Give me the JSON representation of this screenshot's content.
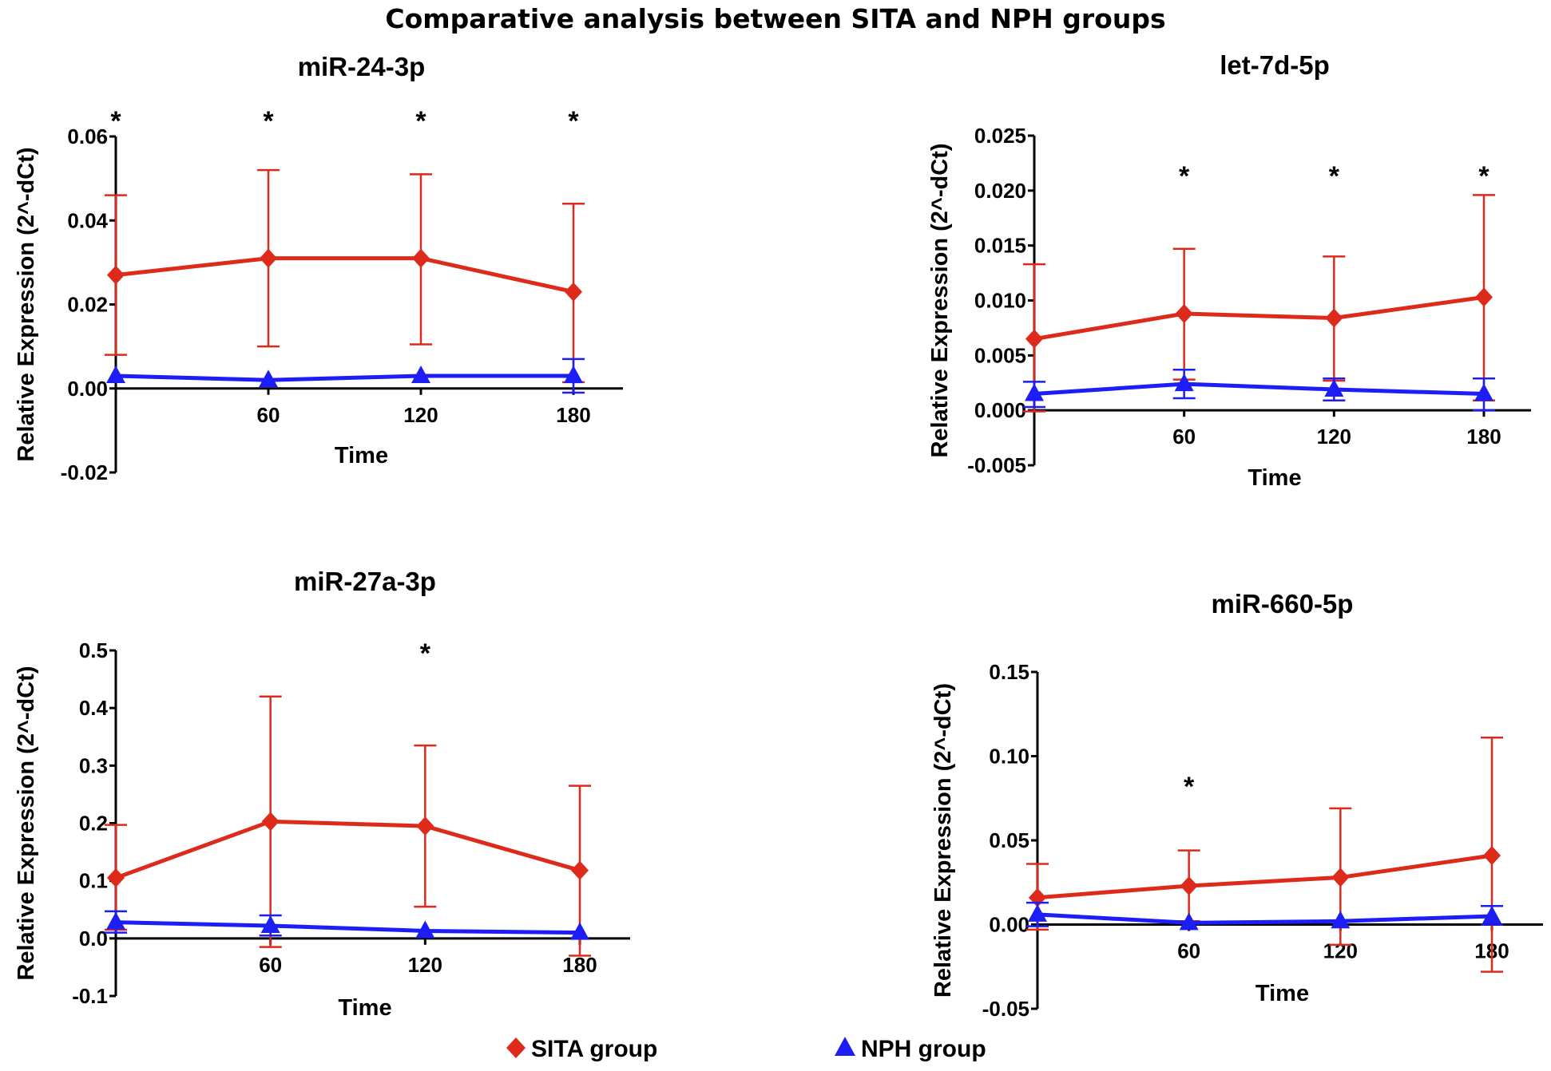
{
  "title": "Comparative analysis between SITA and NPH groups",
  "colors": {
    "sita": "#dd2a1a",
    "nph": "#1d1df5",
    "axis": "#000000"
  },
  "legend": [
    {
      "label": "SITA group",
      "marker": "diamond",
      "color_key": "sita"
    },
    {
      "label": "NPH group",
      "marker": "triangle",
      "color_key": "nph"
    }
  ],
  "chart_data": [
    {
      "type": "line",
      "title": "miR-24-3p",
      "xlabel": "Time",
      "ylabel": "Relative Expression (2^-dCt)",
      "x": [
        0,
        60,
        120,
        180
      ],
      "xticks": [
        "60",
        "120",
        "180"
      ],
      "ylim": [
        -0.02,
        0.06
      ],
      "yticks": [
        "-0.02",
        "0.00",
        "0.02",
        "0.04",
        "0.06"
      ],
      "ytick_values": [
        -0.02,
        0,
        0.02,
        0.04,
        0.06
      ],
      "significant_at": [
        0,
        60,
        120,
        180
      ],
      "series": [
        {
          "name": "SITA group",
          "values": [
            0.027,
            0.031,
            0.031,
            0.023
          ],
          "err_low": [
            0.008,
            0.01,
            0.0105,
            0.0015
          ],
          "err_high": [
            0.046,
            0.052,
            0.051,
            0.044
          ]
        },
        {
          "name": "NPH group",
          "values": [
            0.003,
            0.002,
            0.003,
            0.003
          ],
          "err_low": [
            0.003,
            0.002,
            0.003,
            -0.001
          ],
          "err_high": [
            0.003,
            0.002,
            0.003,
            0.007
          ]
        }
      ]
    },
    {
      "type": "line",
      "title": "let-7d-5p",
      "xlabel": "Time",
      "ylabel": "Relative Expression (2^-dCt)",
      "x": [
        0,
        60,
        120,
        180
      ],
      "xticks": [
        "60",
        "120",
        "180"
      ],
      "ylim": [
        -0.005,
        0.025
      ],
      "yticks": [
        "-0.005",
        "0.000",
        "0.005",
        "0.010",
        "0.015",
        "0.020",
        "0.025"
      ],
      "ytick_values": [
        -0.005,
        0,
        0.005,
        0.01,
        0.015,
        0.02,
        0.025
      ],
      "significant_at": [
        60,
        120,
        180
      ],
      "series": [
        {
          "name": "SITA group",
          "values": [
            0.0065,
            0.0088,
            0.0084,
            0.0103
          ],
          "err_low": [
            -0.0001,
            0.0028,
            0.0027,
            0.0009
          ],
          "err_high": [
            0.0133,
            0.0147,
            0.014,
            0.0196
          ]
        },
        {
          "name": "NPH group",
          "values": [
            0.0015,
            0.0024,
            0.0019,
            0.0015
          ],
          "err_low": [
            0.0003,
            0.0011,
            0.0009,
            0.0
          ],
          "err_high": [
            0.0026,
            0.0037,
            0.0029,
            0.0029
          ]
        }
      ]
    },
    {
      "type": "line",
      "title": "miR-27a-3p",
      "xlabel": "Time",
      "ylabel": "Relative Expression (2^-dCt)",
      "x": [
        0,
        60,
        120,
        180
      ],
      "xticks": [
        "60",
        "120",
        "180"
      ],
      "ylim": [
        -0.1,
        0.5
      ],
      "yticks": [
        "-0.1",
        "0.0",
        "0.1",
        "0.2",
        "0.3",
        "0.4",
        "0.5"
      ],
      "ytick_values": [
        -0.1,
        0,
        0.1,
        0.2,
        0.3,
        0.4,
        0.5
      ],
      "significant_at": [
        120
      ],
      "series": [
        {
          "name": "SITA group",
          "values": [
            0.105,
            0.203,
            0.195,
            0.118
          ],
          "err_low": [
            0.015,
            -0.015,
            0.055,
            -0.03
          ],
          "err_high": [
            0.197,
            0.42,
            0.335,
            0.265
          ]
        },
        {
          "name": "NPH group",
          "values": [
            0.028,
            0.022,
            0.013,
            0.01
          ],
          "err_low": [
            0.01,
            0.005,
            0.013,
            0.01
          ],
          "err_high": [
            0.047,
            0.04,
            0.013,
            0.01
          ]
        }
      ]
    },
    {
      "type": "line",
      "title": "miR-660-5p",
      "xlabel": "Time",
      "ylabel": "Relative Expression (2^-dCt)",
      "x": [
        0,
        60,
        120,
        180
      ],
      "xticks": [
        "60",
        "120",
        "180"
      ],
      "ylim": [
        -0.05,
        0.15
      ],
      "yticks": [
        "-0.05",
        "0.00",
        "0.05",
        "0.10",
        "0.15"
      ],
      "ytick_values": [
        -0.05,
        0,
        0.05,
        0.1,
        0.15
      ],
      "significant_at": [
        60
      ],
      "series": [
        {
          "name": "SITA group",
          "values": [
            0.016,
            0.023,
            0.028,
            0.041
          ],
          "err_low": [
            -0.003,
            0.002,
            -0.012,
            -0.028
          ],
          "err_high": [
            0.036,
            0.044,
            0.069,
            0.111
          ]
        },
        {
          "name": "NPH group",
          "values": [
            0.006,
            0.001,
            0.002,
            0.005
          ],
          "err_low": [
            -0.001,
            0.001,
            0.002,
            0.0
          ],
          "err_high": [
            0.013,
            0.001,
            0.002,
            0.011
          ]
        }
      ]
    }
  ]
}
